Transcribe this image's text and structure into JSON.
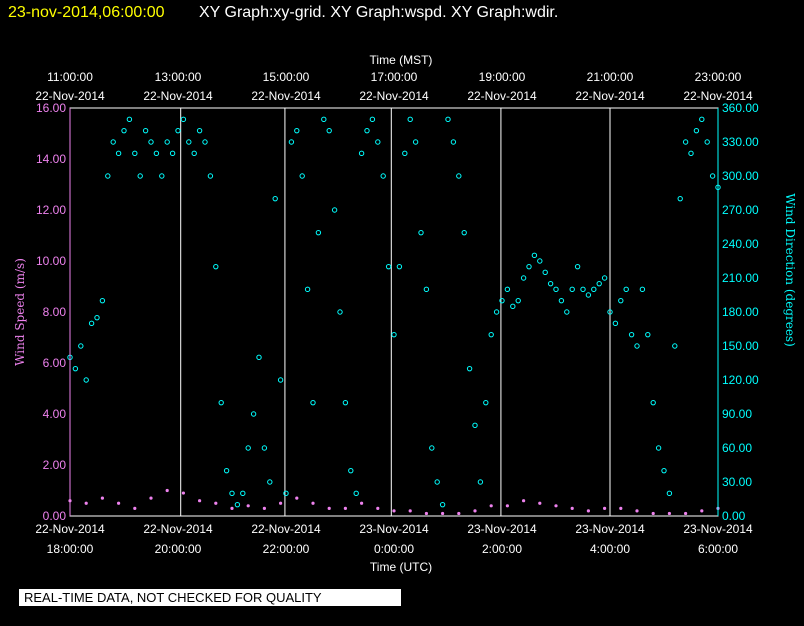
{
  "header": {
    "date": "23-nov-2014,06:00:00",
    "graphs": "XY Graph:xy-grid.  XY Graph:wspd.  XY Graph:wdir."
  },
  "disclaimer": "REAL-TIME DATA, NOT CHECKED FOR QUALITY",
  "colors": {
    "speed": "#ee82ee",
    "direction": "#00ffff",
    "grid": "#ffffff",
    "background": "#000000"
  },
  "chart_data": {
    "type": "scatter",
    "x_top": {
      "title": "Time (MST)",
      "ticks": [
        {
          "time": "11:00:00",
          "date": "22-Nov-2014",
          "hour": 0
        },
        {
          "time": "13:00:00",
          "date": "22-Nov-2014",
          "hour": 2
        },
        {
          "time": "15:00:00",
          "date": "22-Nov-2014",
          "hour": 4
        },
        {
          "time": "17:00:00",
          "date": "22-Nov-2014",
          "hour": 6
        },
        {
          "time": "19:00:00",
          "date": "22-Nov-2014",
          "hour": 8
        },
        {
          "time": "21:00:00",
          "date": "22-Nov-2014",
          "hour": 10
        },
        {
          "time": "23:00:00",
          "date": "22-Nov-2014",
          "hour": 12
        }
      ]
    },
    "x_bottom": {
      "title": "Time (UTC)",
      "ticks": [
        {
          "date": "22-Nov-2014",
          "time": "18:00:00",
          "hour": 0
        },
        {
          "date": "22-Nov-2014",
          "time": "20:00:00",
          "hour": 2
        },
        {
          "date": "22-Nov-2014",
          "time": "22:00:00",
          "hour": 4
        },
        {
          "date": "23-Nov-2014",
          "time": "0:00:00",
          "hour": 6
        },
        {
          "date": "23-Nov-2014",
          "time": "2:00:00",
          "hour": 8
        },
        {
          "date": "23-Nov-2014",
          "time": "4:00:00",
          "hour": 10
        },
        {
          "date": "23-Nov-2014",
          "time": "6:00:00",
          "hour": 12
        }
      ]
    },
    "xlim": [
      0,
      12
    ],
    "y_left": {
      "title": "Wind Speed (m/s)",
      "ylim": [
        0,
        16
      ],
      "ticks": [
        "0.00",
        "2.00",
        "4.00",
        "6.00",
        "8.00",
        "10.00",
        "12.00",
        "14.00",
        "16.00"
      ]
    },
    "y_right": {
      "title": "Wind Direction (degrees)",
      "ylim": [
        0,
        360
      ],
      "ticks": [
        "0.00",
        "30.00",
        "60.00",
        "90.00",
        "120.00",
        "150.00",
        "180.00",
        "210.00",
        "240.00",
        "270.00",
        "300.00",
        "330.00",
        "360.00"
      ]
    },
    "grid_x_hours": [
      2.05,
      3.98,
      5.95,
      7.98,
      10.0
    ],
    "series": [
      {
        "name": "wspd",
        "axis": "left",
        "values": [
          [
            0.0,
            0.6
          ],
          [
            0.3,
            0.5
          ],
          [
            0.6,
            0.7
          ],
          [
            0.9,
            0.5
          ],
          [
            1.2,
            0.3
          ],
          [
            1.5,
            0.7
          ],
          [
            1.8,
            1.0
          ],
          [
            2.1,
            0.9
          ],
          [
            2.4,
            0.6
          ],
          [
            2.7,
            0.5
          ],
          [
            3.0,
            0.3
          ],
          [
            3.3,
            0.4
          ],
          [
            3.6,
            0.3
          ],
          [
            3.9,
            0.5
          ],
          [
            4.2,
            0.7
          ],
          [
            4.5,
            0.5
          ],
          [
            4.8,
            0.3
          ],
          [
            5.1,
            0.3
          ],
          [
            5.4,
            0.5
          ],
          [
            5.7,
            0.3
          ],
          [
            6.0,
            0.2
          ],
          [
            6.3,
            0.2
          ],
          [
            6.6,
            0.1
          ],
          [
            6.9,
            0.1
          ],
          [
            7.2,
            0.1
          ],
          [
            7.5,
            0.2
          ],
          [
            7.8,
            0.4
          ],
          [
            8.1,
            0.4
          ],
          [
            8.4,
            0.6
          ],
          [
            8.7,
            0.5
          ],
          [
            9.0,
            0.4
          ],
          [
            9.3,
            0.3
          ],
          [
            9.6,
            0.2
          ],
          [
            9.9,
            0.3
          ],
          [
            10.2,
            0.3
          ],
          [
            10.5,
            0.2
          ],
          [
            10.8,
            0.1
          ],
          [
            11.1,
            0.1
          ],
          [
            11.4,
            0.1
          ],
          [
            11.7,
            0.2
          ],
          [
            12.0,
            0.3
          ]
        ]
      },
      {
        "name": "wdir",
        "axis": "right",
        "values": [
          [
            0.0,
            140
          ],
          [
            0.1,
            130
          ],
          [
            0.2,
            150
          ],
          [
            0.3,
            120
          ],
          [
            0.4,
            170
          ],
          [
            0.5,
            175
          ],
          [
            0.6,
            190
          ],
          [
            0.7,
            300
          ],
          [
            0.8,
            330
          ],
          [
            0.9,
            320
          ],
          [
            1.0,
            340
          ],
          [
            1.1,
            350
          ],
          [
            1.2,
            320
          ],
          [
            1.3,
            300
          ],
          [
            1.4,
            340
          ],
          [
            1.5,
            330
          ],
          [
            1.6,
            320
          ],
          [
            1.7,
            300
          ],
          [
            1.8,
            330
          ],
          [
            1.9,
            320
          ],
          [
            2.0,
            340
          ],
          [
            2.1,
            350
          ],
          [
            2.2,
            330
          ],
          [
            2.3,
            320
          ],
          [
            2.4,
            340
          ],
          [
            2.5,
            330
          ],
          [
            2.6,
            300
          ],
          [
            2.7,
            220
          ],
          [
            2.8,
            100
          ],
          [
            2.9,
            40
          ],
          [
            3.0,
            20
          ],
          [
            3.1,
            10
          ],
          [
            3.2,
            20
          ],
          [
            3.3,
            60
          ],
          [
            3.4,
            90
          ],
          [
            3.5,
            140
          ],
          [
            3.6,
            60
          ],
          [
            3.7,
            30
          ],
          [
            3.8,
            280
          ],
          [
            3.9,
            120
          ],
          [
            4.0,
            20
          ],
          [
            4.1,
            330
          ],
          [
            4.2,
            340
          ],
          [
            4.3,
            300
          ],
          [
            4.4,
            200
          ],
          [
            4.5,
            100
          ],
          [
            4.6,
            250
          ],
          [
            4.7,
            350
          ],
          [
            4.8,
            340
          ],
          [
            4.9,
            270
          ],
          [
            5.0,
            180
          ],
          [
            5.1,
            100
          ],
          [
            5.2,
            40
          ],
          [
            5.3,
            20
          ],
          [
            5.4,
            320
          ],
          [
            5.5,
            340
          ],
          [
            5.6,
            350
          ],
          [
            5.7,
            330
          ],
          [
            5.8,
            300
          ],
          [
            5.9,
            220
          ],
          [
            6.0,
            160
          ],
          [
            6.1,
            220
          ],
          [
            6.2,
            320
          ],
          [
            6.3,
            350
          ],
          [
            6.4,
            330
          ],
          [
            6.5,
            250
          ],
          [
            6.6,
            200
          ],
          [
            6.7,
            60
          ],
          [
            6.8,
            30
          ],
          [
            6.9,
            10
          ],
          [
            7.0,
            350
          ],
          [
            7.1,
            330
          ],
          [
            7.2,
            300
          ],
          [
            7.3,
            250
          ],
          [
            7.4,
            130
          ],
          [
            7.5,
            80
          ],
          [
            7.6,
            30
          ],
          [
            7.7,
            100
          ],
          [
            7.8,
            160
          ],
          [
            7.9,
            180
          ],
          [
            8.0,
            190
          ],
          [
            8.1,
            200
          ],
          [
            8.2,
            185
          ],
          [
            8.3,
            190
          ],
          [
            8.4,
            210
          ],
          [
            8.5,
            220
          ],
          [
            8.6,
            230
          ],
          [
            8.7,
            225
          ],
          [
            8.8,
            215
          ],
          [
            8.9,
            205
          ],
          [
            9.0,
            200
          ],
          [
            9.1,
            190
          ],
          [
            9.2,
            180
          ],
          [
            9.3,
            200
          ],
          [
            9.4,
            220
          ],
          [
            9.5,
            200
          ],
          [
            9.6,
            195
          ],
          [
            9.7,
            200
          ],
          [
            9.8,
            205
          ],
          [
            9.9,
            210
          ],
          [
            10.0,
            180
          ],
          [
            10.1,
            170
          ],
          [
            10.2,
            190
          ],
          [
            10.3,
            200
          ],
          [
            10.4,
            160
          ],
          [
            10.5,
            150
          ],
          [
            10.6,
            200
          ],
          [
            10.7,
            160
          ],
          [
            10.8,
            100
          ],
          [
            10.9,
            60
          ],
          [
            11.0,
            40
          ],
          [
            11.1,
            20
          ],
          [
            11.2,
            150
          ],
          [
            11.3,
            280
          ],
          [
            11.4,
            330
          ],
          [
            11.5,
            320
          ],
          [
            11.6,
            340
          ],
          [
            11.7,
            350
          ],
          [
            11.8,
            330
          ],
          [
            11.9,
            300
          ],
          [
            12.0,
            290
          ]
        ]
      }
    ]
  }
}
